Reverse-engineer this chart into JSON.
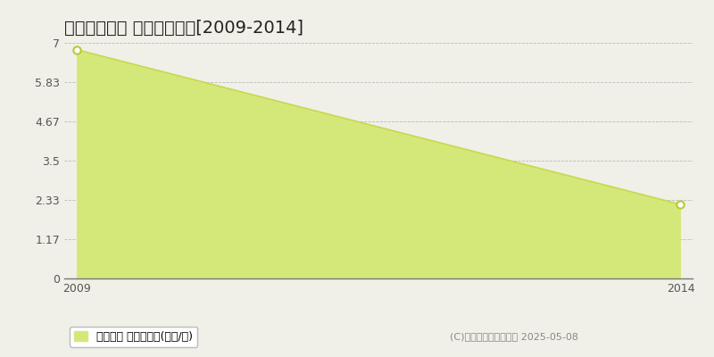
{
  "title": "加東市東古瀬 土地価格推移[2009-2014]",
  "x_values": [
    2009,
    2014
  ],
  "y_values": [
    6.8,
    2.2
  ],
  "y_min": 0,
  "y_max": 7,
  "y_ticks": [
    0,
    1.17,
    2.33,
    3.5,
    4.67,
    5.83,
    7
  ],
  "x_ticks": [
    2009,
    2014
  ],
  "line_color": "#c8d84a",
  "fill_color": "#d4e87a",
  "fill_alpha": 1.0,
  "marker_fill": "#ffffff",
  "marker_edge_color": "#b8cc30",
  "background_color": "#f0f0e8",
  "plot_bg_color": "#f0f0e8",
  "grid_color": "#999999",
  "title_fontsize": 14,
  "tick_fontsize": 9,
  "legend_label": "土地価格 平均坪単価(万円/坪)",
  "copyright_text": "(C)土地価格ドットコム 2025-05-08"
}
